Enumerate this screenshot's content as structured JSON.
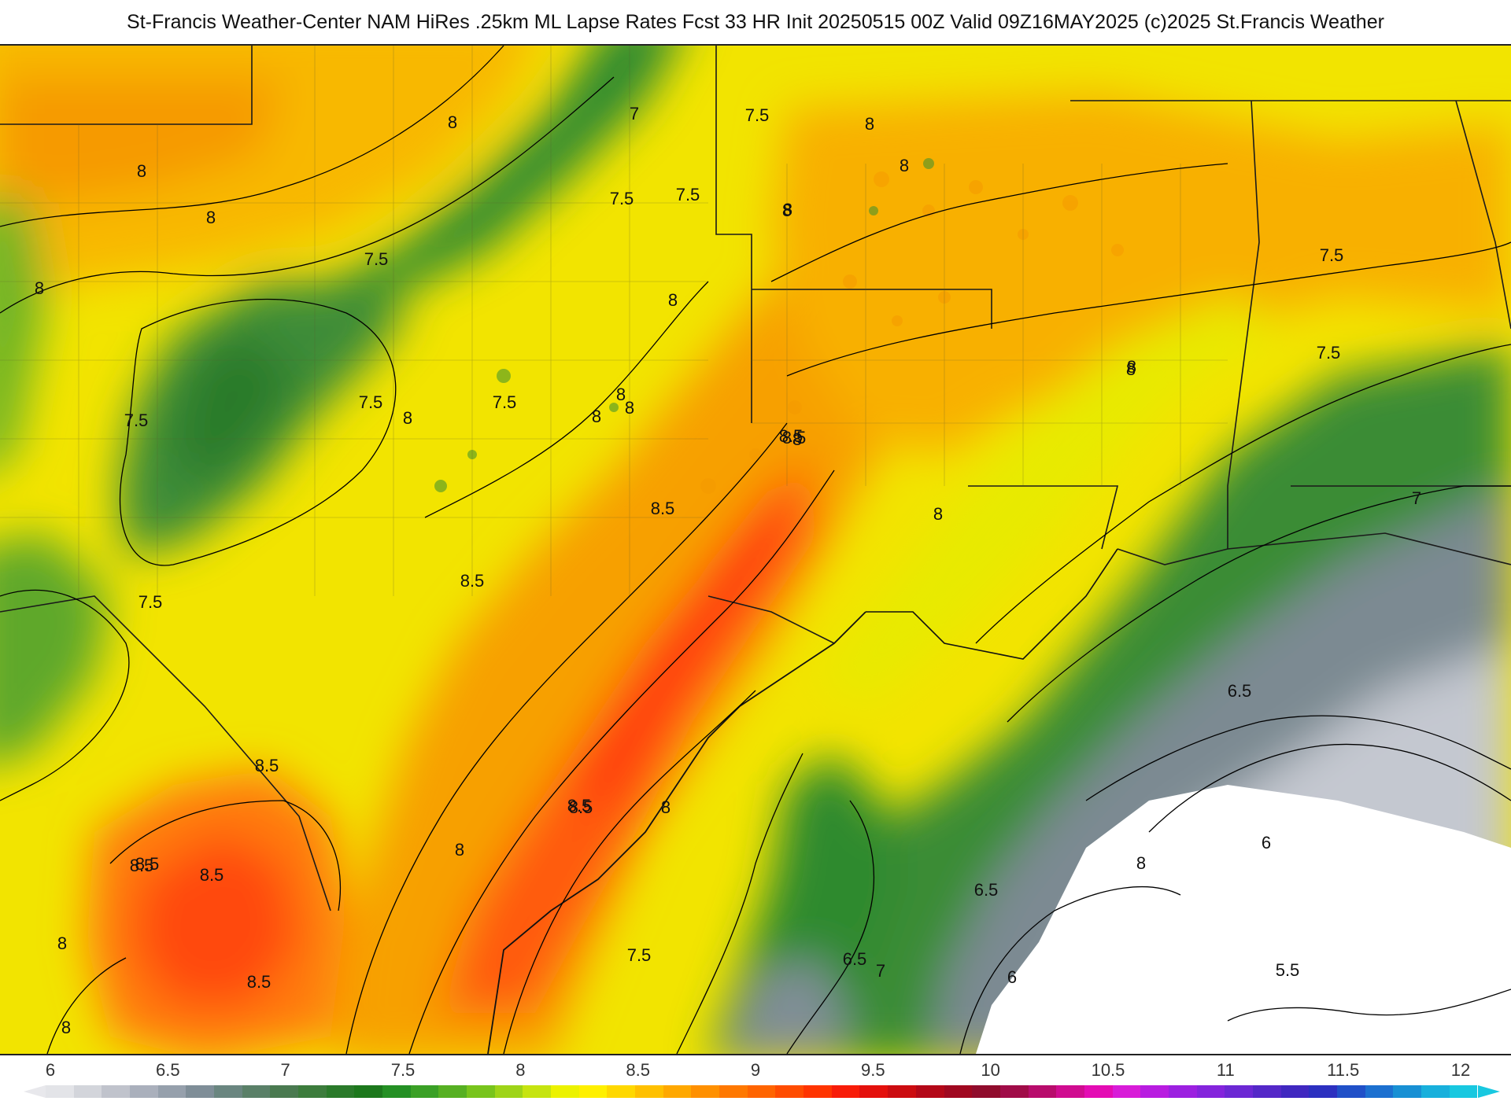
{
  "header": {
    "title": "St-Francis Weather-Center NAM HiRes .25km ML Lapse Rates  Fcst 33 HR Init 20250515 00Z  Valid 09Z16MAY2025    (c)2025 St.Francis Weather"
  },
  "map": {
    "contour_labels": [
      "8",
      "8",
      "8",
      "8",
      "7",
      "7.5",
      "7.5",
      "8",
      "8",
      "7.5",
      "7.5",
      "8",
      "8",
      "7.5",
      "8",
      "8",
      "7.5",
      "8",
      "8",
      "8",
      "8",
      "8.5",
      "8.5",
      "8.5",
      "8",
      "8.5",
      "7.5",
      "8",
      "7.5",
      "7.5",
      "8",
      "7",
      "7.5",
      "6.5",
      "8.5",
      "8",
      "8.5",
      "8.5",
      "8",
      "8",
      "8.5",
      "8.5",
      "8.5",
      "8.5",
      "8",
      "7.5",
      "6.5",
      "7",
      "6",
      "6.5",
      "5.5",
      "6",
      "8"
    ],
    "colors": {
      "low_gray": "#c9ccd4",
      "green": "#2e8b2e",
      "yellow": "#f2f200",
      "orange": "#f7a000",
      "red": "#ff3a10",
      "border": "#000000"
    }
  },
  "colorbar": {
    "ticks": [
      "6",
      "6.5",
      "7",
      "7.5",
      "8",
      "8.5",
      "9",
      "9.5",
      "10",
      "10.5",
      "11",
      "11.5",
      "12"
    ],
    "colors": [
      "#e3e4e8",
      "#d3d5db",
      "#c0c3cc",
      "#aab0bc",
      "#96a0ac",
      "#7f8e98",
      "#6a8680",
      "#5a8068",
      "#4a7a50",
      "#3c7c3c",
      "#2a7a2a",
      "#1c781c",
      "#249024",
      "#3aa026",
      "#56b022",
      "#78c41c",
      "#9ed418",
      "#c6e410",
      "#ecf200",
      "#fff000",
      "#ffd800",
      "#ffc000",
      "#ffa800",
      "#ff9000",
      "#ff7800",
      "#ff6400",
      "#ff4c00",
      "#ff3400",
      "#f81c08",
      "#e4100c",
      "#cc0c10",
      "#b40818",
      "#a00820",
      "#900c2c",
      "#a00c48",
      "#b80c6c",
      "#d00c90",
      "#e40cb4",
      "#d81cd8",
      "#b81ce0",
      "#9c20e0",
      "#8424dc",
      "#6c28d4",
      "#5428c8",
      "#4028c0",
      "#2c30c0",
      "#2050c8",
      "#1c70d0",
      "#1890d4",
      "#18b0dc",
      "#18c8e0"
    ]
  }
}
